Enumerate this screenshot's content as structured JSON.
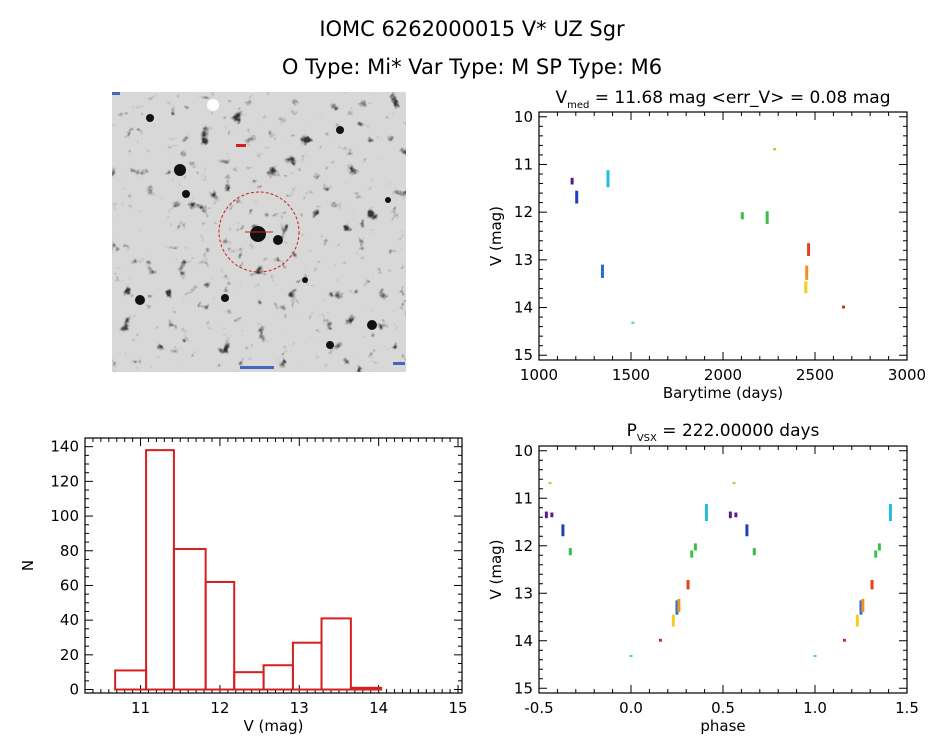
{
  "header": {
    "line1": "IOMC 6262000015   V* UZ Sgr",
    "line2": "O Type: Mi*  Var Type: M  SP Type: M6"
  },
  "image_panel": {
    "label": "finder-image"
  },
  "chart_data": [
    {
      "id": "lightcurve",
      "type": "scatter",
      "title_parts": [
        "V",
        "med",
        " = 11.68 mag <err_V> = 0.08 mag"
      ],
      "xlabel": "Barytime (days)",
      "ylabel": "V (mag)",
      "xlim": [
        1000,
        3000
      ],
      "ylim": [
        15.1,
        9.9
      ],
      "xticks": [
        1000,
        1500,
        2000,
        2500,
        3000
      ],
      "yticks": [
        10,
        11,
        12,
        13,
        14,
        15
      ],
      "points": [
        {
          "x": 1180,
          "y": 11.28,
          "y2": 11.42,
          "color": "#5a1a8a"
        },
        {
          "x": 1205,
          "y": 11.55,
          "y2": 11.82,
          "color": "#1f3fbf"
        },
        {
          "x": 1345,
          "y": 13.1,
          "y2": 13.38,
          "color": "#2a6cd6"
        },
        {
          "x": 1375,
          "y": 11.12,
          "y2": 11.48,
          "color": "#22bde0"
        },
        {
          "x": 1510,
          "y": 14.3,
          "y2": 14.33,
          "color": "#3fcfcf"
        },
        {
          "x": 2105,
          "y": 12.0,
          "y2": 12.15,
          "color": "#3bbf4a"
        },
        {
          "x": 2240,
          "y": 11.98,
          "y2": 12.25,
          "color": "#3bbf4a"
        },
        {
          "x": 2280,
          "y": 10.66,
          "y2": 10.7,
          "color": "#88dd22"
        },
        {
          "x": 2450,
          "y": 13.45,
          "y2": 13.7,
          "color": "#f0d020"
        },
        {
          "x": 2455,
          "y": 13.12,
          "y2": 13.42,
          "color": "#f09020"
        },
        {
          "x": 2465,
          "y": 12.65,
          "y2": 12.92,
          "color": "#e04418"
        },
        {
          "x": 2655,
          "y": 13.96,
          "y2": 14.02,
          "color": "#c03020"
        }
      ]
    },
    {
      "id": "histogram",
      "type": "bar",
      "xlabel": "V (mag)",
      "ylabel": "N",
      "xlim": [
        10.3,
        15.05
      ],
      "ylim": [
        -2,
        145
      ],
      "xticks": [
        11,
        12,
        13,
        14,
        15
      ],
      "yticks": [
        0,
        20,
        40,
        60,
        80,
        100,
        120,
        140
      ],
      "bin_edges": [
        10.68,
        11.07,
        11.42,
        11.82,
        12.18,
        12.55,
        12.92,
        13.28,
        13.65,
        14.03,
        14.42
      ],
      "counts": [
        11,
        138,
        81,
        62,
        10,
        14,
        27,
        41,
        1,
        0
      ],
      "bar_color": "#d42020"
    },
    {
      "id": "phase",
      "type": "scatter",
      "title_parts": [
        "P",
        "VSX",
        " = 222.00000 days"
      ],
      "xlabel": "phase",
      "ylabel": "V (mag)",
      "xlim": [
        -0.5,
        1.5
      ],
      "ylim": [
        15.1,
        9.9
      ],
      "xticks": [
        -0.5,
        0.0,
        0.5,
        1.0,
        1.5
      ],
      "xticklabels": [
        "-0.5",
        "0.0",
        "0.5",
        "1.0",
        "1.5"
      ],
      "yticks": [
        10,
        11,
        12,
        13,
        14,
        15
      ],
      "points": [
        {
          "x": -0.44,
          "y": 10.66,
          "y2": 10.7,
          "color": "#88dd22"
        },
        {
          "x": -0.46,
          "y": 11.28,
          "y2": 11.42,
          "color": "#5a1a8a"
        },
        {
          "x": -0.43,
          "y": 11.3,
          "y2": 11.4,
          "color": "#5a1a8a"
        },
        {
          "x": -0.37,
          "y": 11.55,
          "y2": 11.8,
          "color": "#1f3fbf"
        },
        {
          "x": -0.33,
          "y": 12.05,
          "y2": 12.2,
          "color": "#3bbf4a"
        },
        {
          "x": 0.0,
          "y": 14.3,
          "y2": 14.33,
          "color": "#3fcfcf"
        },
        {
          "x": 0.16,
          "y": 13.96,
          "y2": 14.02,
          "color": "#c03020"
        },
        {
          "x": 0.23,
          "y": 13.45,
          "y2": 13.7,
          "color": "#f0d020"
        },
        {
          "x": 0.25,
          "y": 13.15,
          "y2": 13.45,
          "color": "#2a6cd6"
        },
        {
          "x": 0.26,
          "y": 13.12,
          "y2": 13.4,
          "color": "#f09020"
        },
        {
          "x": 0.31,
          "y": 12.72,
          "y2": 12.92,
          "color": "#e04418"
        },
        {
          "x": 0.33,
          "y": 12.1,
          "y2": 12.25,
          "color": "#3bbf4a"
        },
        {
          "x": 0.35,
          "y": 11.95,
          "y2": 12.1,
          "color": "#3bbf4a"
        },
        {
          "x": 0.41,
          "y": 11.12,
          "y2": 11.48,
          "color": "#22bde0"
        },
        {
          "x": 0.56,
          "y": 10.66,
          "y2": 10.7,
          "color": "#88dd22"
        },
        {
          "x": 0.54,
          "y": 11.28,
          "y2": 11.42,
          "color": "#5a1a8a"
        },
        {
          "x": 0.57,
          "y": 11.3,
          "y2": 11.4,
          "color": "#5a1a8a"
        },
        {
          "x": 0.63,
          "y": 11.55,
          "y2": 11.8,
          "color": "#1f3fbf"
        },
        {
          "x": 0.67,
          "y": 12.05,
          "y2": 12.2,
          "color": "#3bbf4a"
        },
        {
          "x": 1.0,
          "y": 14.3,
          "y2": 14.33,
          "color": "#3fcfcf"
        },
        {
          "x": 1.16,
          "y": 13.96,
          "y2": 14.02,
          "color": "#c03020"
        },
        {
          "x": 1.23,
          "y": 13.45,
          "y2": 13.7,
          "color": "#f0d020"
        },
        {
          "x": 1.25,
          "y": 13.15,
          "y2": 13.45,
          "color": "#2a6cd6"
        },
        {
          "x": 1.26,
          "y": 13.12,
          "y2": 13.4,
          "color": "#f09020"
        },
        {
          "x": 1.31,
          "y": 12.72,
          "y2": 12.92,
          "color": "#e04418"
        },
        {
          "x": 1.33,
          "y": 12.1,
          "y2": 12.25,
          "color": "#3bbf4a"
        },
        {
          "x": 1.35,
          "y": 11.95,
          "y2": 12.1,
          "color": "#3bbf4a"
        },
        {
          "x": 1.41,
          "y": 11.12,
          "y2": 11.48,
          "color": "#22bde0"
        }
      ]
    }
  ]
}
